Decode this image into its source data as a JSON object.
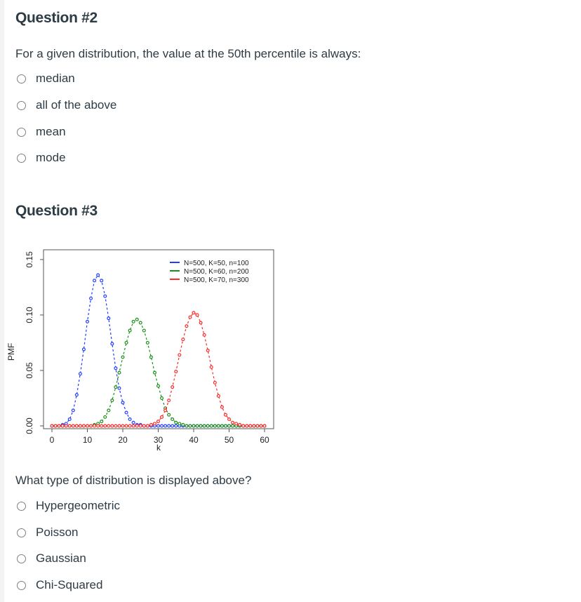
{
  "question2": {
    "title": "Question #2",
    "prompt": "For a given distribution, the value at the 50th percentile is always:",
    "options": [
      "median",
      "all of the above",
      "mean",
      "mode"
    ]
  },
  "question3": {
    "title": "Question #3",
    "prompt": "What type of distribution is displayed above?",
    "options": [
      "Hypergeometric",
      "Poisson",
      "Gaussian",
      "Chi-Squared"
    ]
  },
  "chart_data": {
    "type": "line",
    "xlabel": "k",
    "ylabel": "PMF",
    "xlim": [
      0,
      60
    ],
    "ylim": [
      0,
      0.155
    ],
    "xticks": [
      0,
      10,
      20,
      30,
      40,
      50,
      60
    ],
    "yticks": [
      "0.00",
      "0.05",
      "0.10",
      "0.15"
    ],
    "legend_position": "top-right",
    "series": [
      {
        "name": "N=500, K=50, n=100",
        "color": "#1f3fff",
        "values": [
          0.0,
          0.0,
          0.0,
          0.001,
          0.002,
          0.006,
          0.014,
          0.028,
          0.047,
          0.069,
          0.094,
          0.115,
          0.131,
          0.136,
          0.131,
          0.117,
          0.097,
          0.074,
          0.052,
          0.034,
          0.021,
          0.012,
          0.006,
          0.003,
          0.001,
          0.001,
          0.0
        ]
      },
      {
        "name": "N=500, K=60, n=200",
        "color": "#1a8f1a",
        "start": 12,
        "values": [
          0.001,
          0.002,
          0.004,
          0.008,
          0.014,
          0.023,
          0.035,
          0.048,
          0.062,
          0.075,
          0.086,
          0.094,
          0.096,
          0.093,
          0.086,
          0.075,
          0.062,
          0.048,
          0.036,
          0.025,
          0.016,
          0.01,
          0.006,
          0.003,
          0.002,
          0.001
        ]
      },
      {
        "name": "N=500, K=70, n=300",
        "color": "#ff2a2a",
        "start": 28,
        "values": [
          0.001,
          0.002,
          0.004,
          0.008,
          0.014,
          0.023,
          0.035,
          0.049,
          0.064,
          0.078,
          0.09,
          0.098,
          0.102,
          0.1,
          0.093,
          0.082,
          0.068,
          0.053,
          0.039,
          0.027,
          0.017,
          0.01,
          0.006,
          0.003,
          0.002,
          0.001
        ]
      }
    ]
  }
}
